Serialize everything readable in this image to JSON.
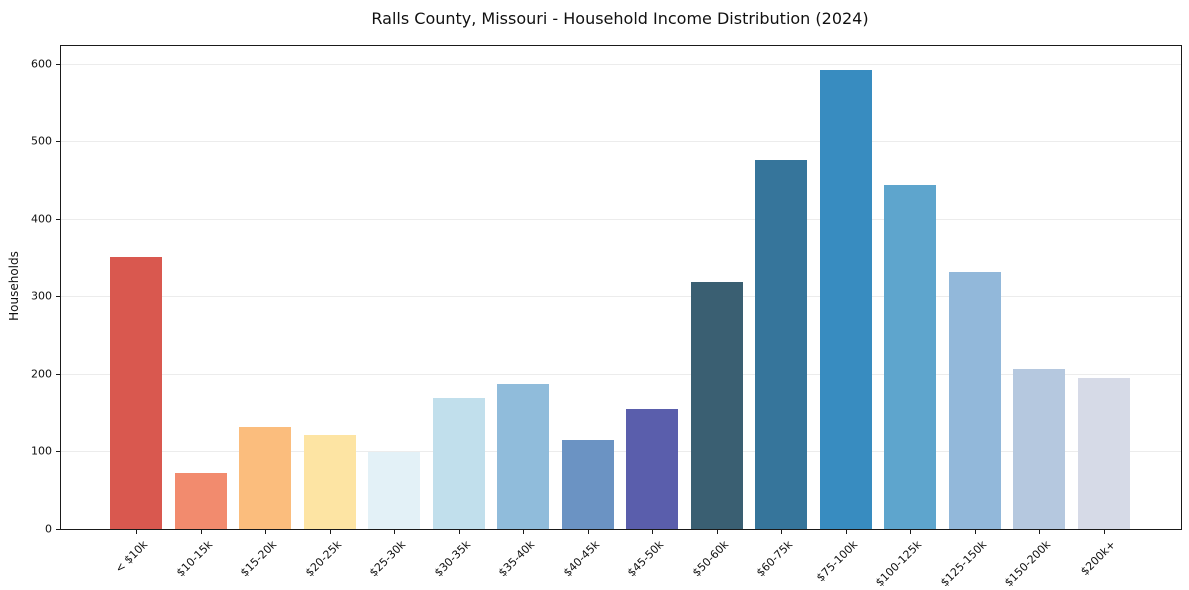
{
  "chart_data": {
    "type": "bar",
    "title": "Ralls County, Missouri - Household Income Distribution (2024)",
    "xlabel": "",
    "ylabel": "Households",
    "categories": [
      "< $10k",
      "$10-15k",
      "$15-20k",
      "$20-25k",
      "$25-30k",
      "$30-35k",
      "$35-40k",
      "$40-45k",
      "$45-50k",
      "$50-60k",
      "$60-75k",
      "$75-100k",
      "$100-125k",
      "$125-150k",
      "$150-200k",
      "$200k+"
    ],
    "values": [
      351,
      72,
      132,
      121,
      99,
      169,
      187,
      115,
      155,
      318,
      476,
      592,
      444,
      332,
      206,
      195
    ],
    "bar_colors": [
      "#d9584f",
      "#f28b6e",
      "#fbbd7d",
      "#fde4a3",
      "#e3f1f7",
      "#c1dfec",
      "#90bcdb",
      "#6b93c3",
      "#5a5eac",
      "#3a5f72",
      "#36759b",
      "#388cc0",
      "#5ea5cd",
      "#92b8da",
      "#b5c8df",
      "#d6dae7"
    ],
    "ylim": [
      0,
      623
    ],
    "yticks": [
      0,
      100,
      200,
      300,
      400,
      500,
      600
    ],
    "grid": "horizontal",
    "gridline_color": "#ececec",
    "axis_color": "#1a1a1a",
    "text_color": "#111111",
    "background_color": "#ffffff",
    "legend": "none"
  }
}
